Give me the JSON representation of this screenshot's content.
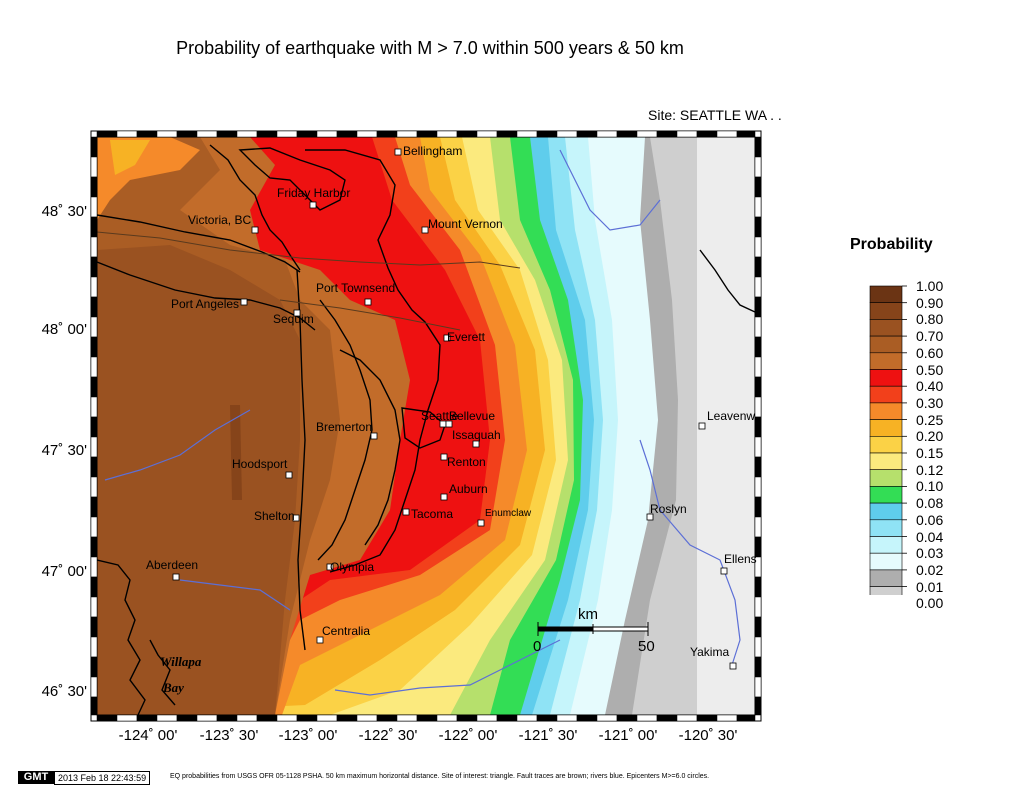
{
  "title": "Probability of earthquake with M > 7.0 within 500 years & 50 km",
  "site": "Site: SEATTLE  WA . .",
  "map": {
    "lat_ticks": [
      "48˚ 30'",
      "48˚ 00'",
      "47˚ 30'",
      "47˚ 00'",
      "46˚ 30'"
    ],
    "lon_ticks": [
      "-124˚ 00'",
      "-123˚ 30'",
      "-123˚ 00'",
      "-122˚ 30'",
      "-122˚ 00'",
      "-121˚ 30'",
      "-121˚ 00'",
      "-120˚ 30'"
    ],
    "cities": [
      {
        "name": "Bellingham"
      },
      {
        "name": "Friday Harbor"
      },
      {
        "name": "Victoria, BC"
      },
      {
        "name": "Mount Vernon"
      },
      {
        "name": "Port Townsend"
      },
      {
        "name": "Port Angeles"
      },
      {
        "name": "Sequim"
      },
      {
        "name": "Everett"
      },
      {
        "name": "Seattle"
      },
      {
        "name": "Bellevue"
      },
      {
        "name": "Bremerton"
      },
      {
        "name": "Issaquah"
      },
      {
        "name": "Hoodsport"
      },
      {
        "name": "Renton"
      },
      {
        "name": "Auburn"
      },
      {
        "name": "Shelton"
      },
      {
        "name": "Tacoma"
      },
      {
        "name": "Enumclaw"
      },
      {
        "name": "Aberdeen"
      },
      {
        "name": "Olympia"
      },
      {
        "name": "Centralia"
      },
      {
        "name": "Leavenw"
      },
      {
        "name": "Roslyn"
      },
      {
        "name": "Ellens"
      },
      {
        "name": "Yakima"
      }
    ],
    "water_labels": [
      "Willapa",
      "Bay"
    ],
    "scale_bar": {
      "unit": "km",
      "start": "0",
      "end": "50"
    }
  },
  "legend": {
    "title": "Probability",
    "levels": [
      {
        "label": "1.00",
        "color": "#6b3414"
      },
      {
        "label": "0.90",
        "color": "#86441a"
      },
      {
        "label": "0.80",
        "color": "#9a5221"
      },
      {
        "label": "0.70",
        "color": "#aa5d24"
      },
      {
        "label": "0.60",
        "color": "#c26c2a"
      },
      {
        "label": "0.50",
        "color": "#ee1111"
      },
      {
        "label": "0.40",
        "color": "#f2401b"
      },
      {
        "label": "0.30",
        "color": "#f58a2a"
      },
      {
        "label": "0.25",
        "color": "#f7b224"
      },
      {
        "label": "0.20",
        "color": "#fbd246"
      },
      {
        "label": "0.15",
        "color": "#fbea7e"
      },
      {
        "label": "0.12",
        "color": "#b6e06c"
      },
      {
        "label": "0.10",
        "color": "#33dd55"
      },
      {
        "label": "0.08",
        "color": "#5fcdec"
      },
      {
        "label": "0.06",
        "color": "#8fe3f5"
      },
      {
        "label": "0.04",
        "color": "#c6f5fb"
      },
      {
        "label": "0.03",
        "color": "#e6fbfd"
      },
      {
        "label": "0.02",
        "color": "#aeaeae"
      },
      {
        "label": "0.01",
        "color": "#cfcfcf"
      },
      {
        "label": "0.00",
        "color": "#ededed"
      }
    ]
  },
  "footer": {
    "gmt": "GMT",
    "stamp": "2013 Feb 18 22:43:59",
    "note": "EQ probabilities from USGS OFR 05-1128 PSHA. 50 km maximum horizontal distance. Site of interest: triangle. Fault traces are brown; rivers blue. Epicenters M>=6.0 circles."
  },
  "colors": {
    "river": "#5c6fd6",
    "fault": "#5a3a1e",
    "coast": "#000000",
    "city_marker": "#ffffff"
  }
}
